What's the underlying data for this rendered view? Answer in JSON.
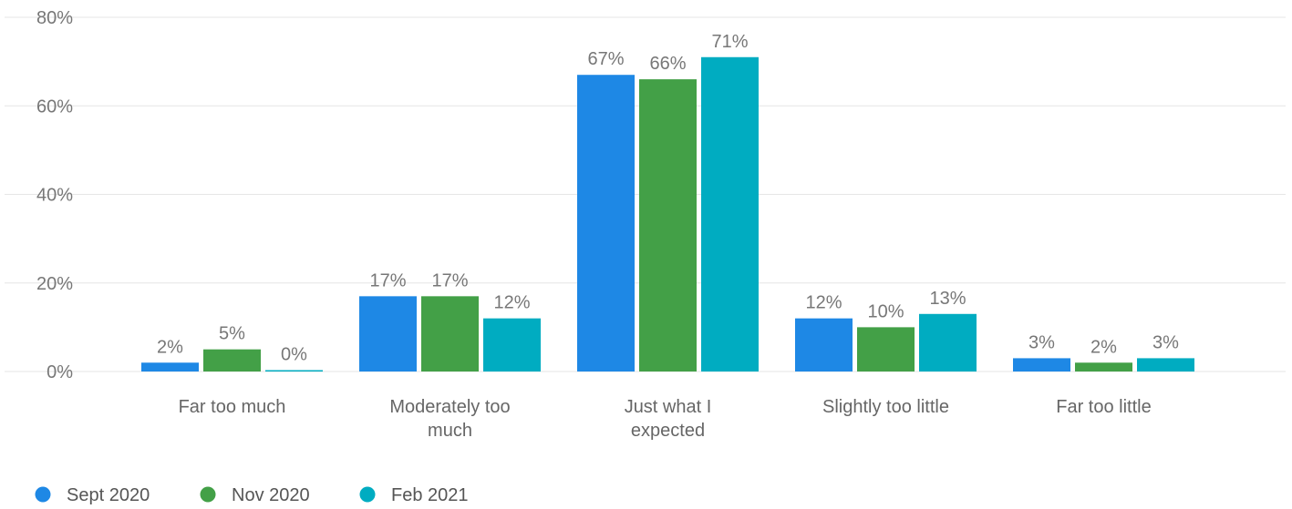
{
  "chart_data": {
    "type": "bar",
    "categories": [
      [
        "Far too much"
      ],
      [
        "Moderately too",
        "much"
      ],
      [
        "Just what I",
        "expected"
      ],
      [
        "Slightly too little"
      ],
      [
        "Far too little"
      ]
    ],
    "series": [
      {
        "name": "Sept 2020",
        "color": "#1e88e5",
        "values": [
          2,
          17,
          67,
          12,
          3
        ]
      },
      {
        "name": "Nov 2020",
        "color": "#43a047",
        "values": [
          5,
          17,
          66,
          10,
          2
        ]
      },
      {
        "name": "Feb 2021",
        "color": "#00acc1",
        "values": [
          0,
          12,
          71,
          13,
          3
        ]
      }
    ],
    "y_ticks": [
      0,
      20,
      40,
      60,
      80
    ],
    "ylim": [
      0,
      80
    ],
    "y_unit": "%",
    "grid": true,
    "legend_position": "bottom-left",
    "title": "",
    "xlabel": "",
    "ylabel": ""
  }
}
